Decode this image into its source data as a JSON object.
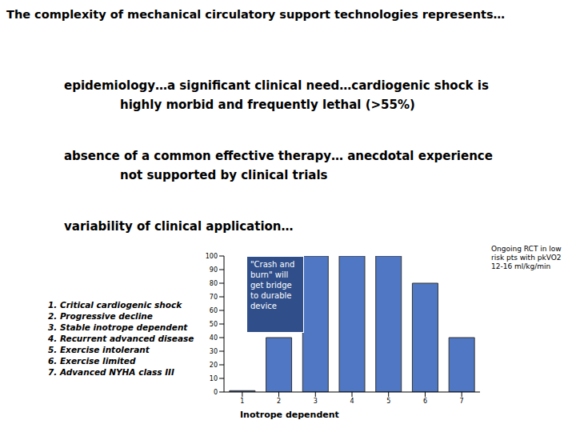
{
  "slide": {
    "title": "The complexity of mechanical circulatory support technologies represents…",
    "paragraphs": [
      [
        "epidemiology…a significant clinical need…cardiogenic shock is",
        "highly morbid and frequently lethal (>55%)"
      ],
      [
        "absence of a common effective therapy… anecdotal experience",
        "not supported by clinical trials"
      ],
      [
        "variability of clinical application…"
      ]
    ],
    "key_list": [
      "1. Critical cardiogenic shock",
      "2. Progressive decline",
      "3. Stable inotrope dependent",
      "4. Recurrent advanced disease",
      "5. Exercise intolerant",
      "6. Exercise limited",
      "7. Advanced NYHA class III"
    ]
  },
  "chart_data": {
    "type": "bar",
    "categories": [
      "1",
      "2",
      "3",
      "4",
      "5",
      "6",
      "7"
    ],
    "values": [
      1,
      40,
      100,
      100,
      100,
      80,
      40
    ],
    "color": "#4f77c4",
    "ylim": [
      0,
      100
    ],
    "yticks": [
      0,
      10,
      20,
      30,
      40,
      50,
      60,
      70,
      80,
      90,
      100
    ],
    "grid": false,
    "x_label": "Inotrope dependent",
    "annotations": [
      "\"Crash and burn\" will get bridge to durable device",
      "Ongoing RCT in low risk pts with pkVO2 12-16 ml/kg/min"
    ]
  }
}
